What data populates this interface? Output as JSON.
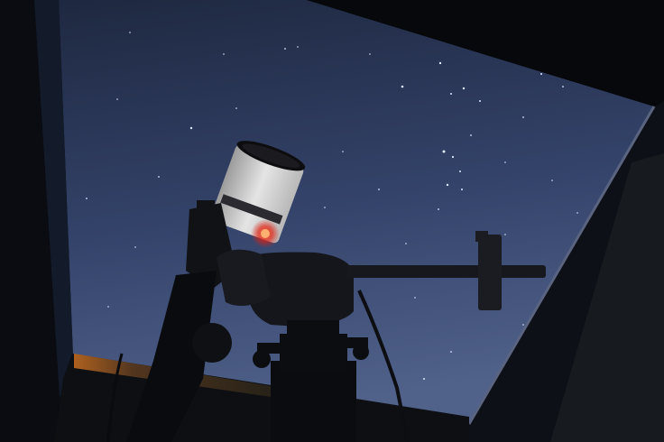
{
  "scene": {
    "subject": "telescope",
    "mount_label": "",
    "colors": {
      "sky_top": "#2a3654",
      "sky_bottom": "#4a5a80",
      "frame": "#0c0f14",
      "red_light": "#ff3a1a",
      "telescope_tube": "#dcdcdc",
      "mount": "#0a0b0e"
    }
  }
}
